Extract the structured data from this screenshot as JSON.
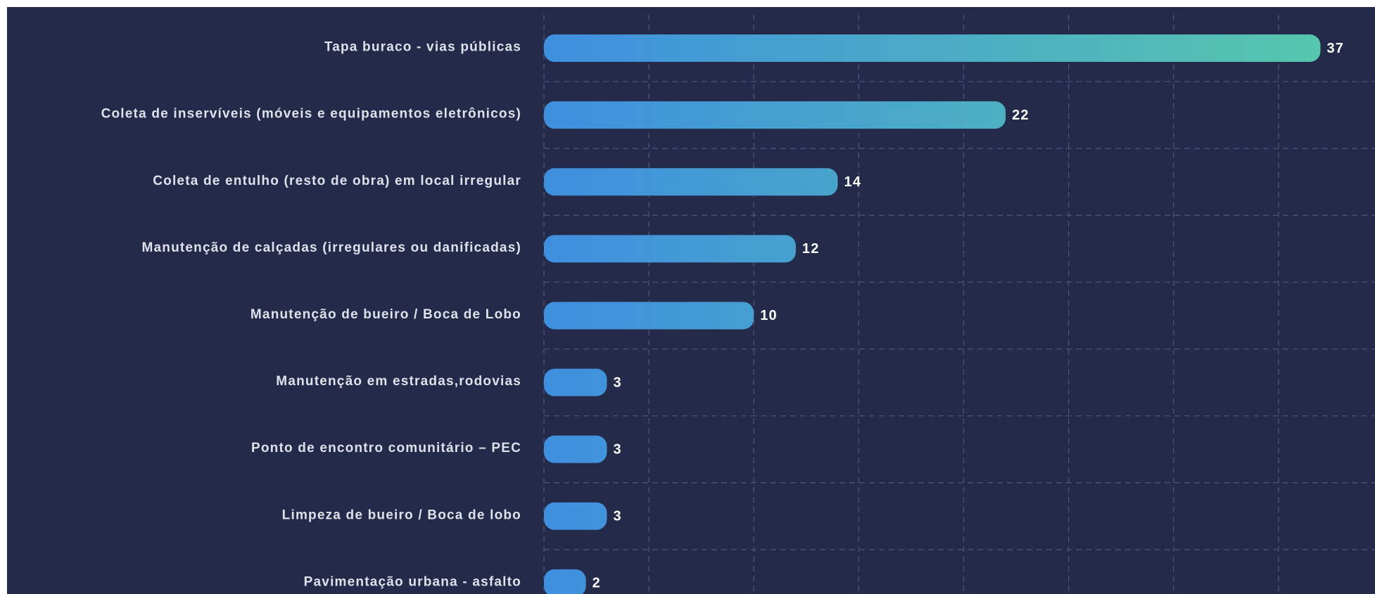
{
  "chart_data": {
    "type": "hbar",
    "categories": [
      "Tapa buraco - vias públicas",
      "Coleta de inservíveis (móveis e equipamentos eletrônicos)",
      "Coleta de entulho (resto de obra) em local irregular",
      "Manutenção de calçadas (irregulares ou danificadas)",
      "Manutenção de bueiro / Boca de Lobo",
      "Manutenção em estradas,rodovias",
      "Ponto de encontro comunitário – PEC",
      "Limpeza de bueiro / Boca de lobo",
      "Pavimentação urbana - asfalto"
    ],
    "values": [
      37,
      22,
      14,
      12,
      10,
      3,
      3,
      3,
      2
    ],
    "color": [
      "#3f8fdf",
      "#57c6ae"
    ],
    "xlim": [
      0,
      39.6
    ],
    "xticks": [
      0,
      5,
      10,
      15,
      20,
      25,
      30,
      35
    ],
    "grid": true
  }
}
